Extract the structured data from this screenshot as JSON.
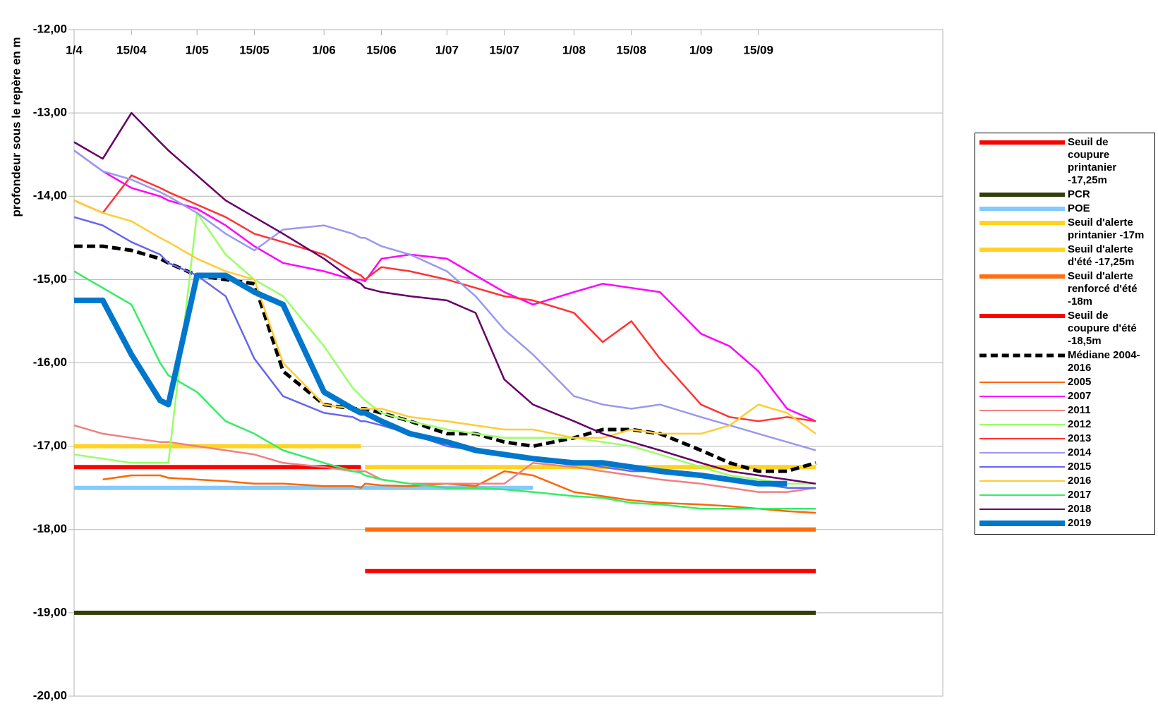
{
  "chart_data": {
    "type": "line",
    "y_label": "profondeur sous le repère en m",
    "x": [
      0,
      7,
      14,
      21,
      23,
      30,
      37,
      44,
      51,
      61,
      68,
      70,
      71,
      75,
      82,
      91,
      98,
      105,
      112,
      122,
      129,
      136,
      143,
      153,
      160,
      167,
      174,
      181
    ],
    "xlim": [
      0,
      212
    ],
    "xticks": [
      {
        "value": 0,
        "label": "1/4"
      },
      {
        "value": 14,
        "label": "15/04"
      },
      {
        "value": 30,
        "label": "1/05"
      },
      {
        "value": 44,
        "label": "15/05"
      },
      {
        "value": 61,
        "label": "1/06"
      },
      {
        "value": 75,
        "label": "15/06"
      },
      {
        "value": 91,
        "label": "1/07"
      },
      {
        "value": 105,
        "label": "15/07"
      },
      {
        "value": 122,
        "label": "1/08"
      },
      {
        "value": 136,
        "label": "15/08"
      },
      {
        "value": 153,
        "label": "1/09"
      },
      {
        "value": 167,
        "label": "15/09"
      }
    ],
    "ylim": [
      -20,
      -12
    ],
    "yticks": [
      {
        "value": -12,
        "label": "-12,00"
      },
      {
        "value": -13,
        "label": "-13,00"
      },
      {
        "value": -14,
        "label": "-14,00"
      },
      {
        "value": -15,
        "label": "-15,00"
      },
      {
        "value": -16,
        "label": "-16,00"
      },
      {
        "value": -17,
        "label": "-17,00"
      },
      {
        "value": -18,
        "label": "-18,00"
      },
      {
        "value": -19,
        "label": "-19,00"
      },
      {
        "value": -20,
        "label": "-20,00"
      }
    ],
    "grid": true,
    "legend": "right",
    "series": [
      {
        "name": "Seuil de coupure printanier -17,25m",
        "color": "#ff0000",
        "width": 6,
        "values": [
          -17.25,
          -17.25,
          -17.25,
          -17.25,
          -17.25,
          -17.25,
          -17.25,
          -17.25,
          -17.25,
          -17.25,
          -17.25,
          -17.25,
          null,
          null,
          null,
          null,
          null,
          null,
          null,
          null,
          null,
          null,
          null,
          null,
          null,
          null,
          null,
          null
        ]
      },
      {
        "name": "PCR",
        "color": "#333d0a",
        "width": 6,
        "values": [
          -19,
          -19,
          -19,
          -19,
          -19,
          -19,
          -19,
          -19,
          -19,
          -19,
          -19,
          -19,
          -19,
          -19,
          -19,
          -19,
          -19,
          -19,
          -19,
          -19,
          -19,
          -19,
          -19,
          -19,
          -19,
          -19,
          -19,
          -19
        ]
      },
      {
        "name": "POE",
        "color": "#83caff",
        "width": 6,
        "values": [
          -17.5,
          -17.5,
          -17.5,
          -17.5,
          -17.5,
          -17.5,
          -17.5,
          -17.5,
          -17.5,
          -17.5,
          -17.5,
          -17.5,
          -17.5,
          -17.5,
          -17.5,
          -17.5,
          -17.5,
          -17.5,
          -17.5,
          null,
          null,
          null,
          null,
          null,
          null,
          null,
          null,
          null
        ]
      },
      {
        "name": "Seuil d'alerte printanier -17m",
        "color": "#ffd320",
        "width": 6,
        "values": [
          -17,
          -17,
          -17,
          -17,
          -17,
          -17,
          -17,
          -17,
          -17,
          -17,
          -17,
          -17,
          null,
          null,
          null,
          null,
          null,
          null,
          null,
          null,
          null,
          null,
          null,
          null,
          null,
          null,
          null,
          null
        ]
      },
      {
        "name": "Seuil d'alerte d'été -17,25m",
        "color": "#ffd320",
        "width": 6,
        "values": [
          null,
          null,
          null,
          null,
          null,
          null,
          null,
          null,
          null,
          null,
          null,
          null,
          -17.25,
          -17.25,
          -17.25,
          -17.25,
          -17.25,
          -17.25,
          -17.25,
          -17.25,
          -17.25,
          -17.25,
          -17.25,
          -17.25,
          -17.25,
          -17.25,
          -17.25,
          -17.25
        ]
      },
      {
        "name": "Seuil d'alerte renforcé d'été -18m",
        "color": "#ff6d10",
        "width": 6,
        "values": [
          null,
          null,
          null,
          null,
          null,
          null,
          null,
          null,
          null,
          null,
          null,
          null,
          -18,
          -18,
          -18,
          -18,
          -18,
          -18,
          -18,
          -18,
          -18,
          -18,
          -18,
          -18,
          -18,
          -18,
          -18,
          -18
        ]
      },
      {
        "name": "Seuil de coupure d'été -18,5m",
        "color": "#ff0000",
        "width": 6,
        "values": [
          null,
          null,
          null,
          null,
          null,
          null,
          null,
          null,
          null,
          null,
          null,
          null,
          -18.5,
          -18.5,
          -18.5,
          -18.5,
          -18.5,
          -18.5,
          -18.5,
          -18.5,
          -18.5,
          -18.5,
          -18.5,
          -18.5,
          -18.5,
          -18.5,
          -18.5,
          -18.5
        ]
      },
      {
        "name": "Médiane 2004-2016",
        "color": "#000000",
        "width": 5,
        "dashed": true,
        "values": [
          -14.6,
          -14.6,
          -14.65,
          -14.75,
          -14.8,
          -14.95,
          -15.0,
          -15.05,
          -16.1,
          -16.5,
          -16.55,
          -16.55,
          -16.55,
          -16.6,
          -16.7,
          -16.85,
          -16.85,
          -16.95,
          -17.0,
          -16.9,
          -16.8,
          -16.8,
          -16.85,
          -17.05,
          -17.2,
          -17.3,
          -17.3,
          -17.2
        ]
      },
      {
        "name": "2005",
        "color": "#ff6600",
        "width": 2.5,
        "values": [
          null,
          -17.4,
          -17.35,
          -17.35,
          -17.38,
          -17.4,
          -17.42,
          -17.45,
          -17.45,
          -17.48,
          -17.48,
          -17.5,
          -17.45,
          -17.47,
          -17.48,
          -17.45,
          -17.48,
          -17.3,
          -17.35,
          -17.55,
          -17.6,
          -17.65,
          -17.68,
          -17.7,
          -17.72,
          -17.75,
          -17.78,
          -17.8
        ]
      },
      {
        "name": "2007",
        "color": "#ff00ff",
        "width": 2.5,
        "values": [
          -13.45,
          -13.7,
          -13.9,
          -14.0,
          -14.05,
          -14.15,
          -14.35,
          -14.6,
          -14.8,
          -14.9,
          -15.0,
          -15.0,
          -15.02,
          -14.75,
          -14.7,
          -14.75,
          -14.95,
          -15.15,
          -15.3,
          -15.15,
          -15.05,
          -15.1,
          -15.15,
          -15.65,
          -15.8,
          -16.1,
          -16.55,
          -16.7
        ]
      },
      {
        "name": "2011",
        "color": "#f08080",
        "width": 2.5,
        "values": [
          -16.75,
          -16.85,
          -16.9,
          -16.95,
          -16.95,
          -17.0,
          -17.05,
          -17.1,
          -17.2,
          -17.25,
          -17.3,
          -17.3,
          -17.3,
          -17.4,
          -17.45,
          -17.45,
          -17.45,
          -17.45,
          -17.2,
          -17.25,
          -17.3,
          -17.35,
          -17.4,
          -17.45,
          -17.5,
          -17.55,
          -17.55,
          -17.5
        ]
      },
      {
        "name": "2012",
        "color": "#99ff66",
        "width": 2.5,
        "values": [
          -17.1,
          -17.15,
          -17.2,
          -17.2,
          -17.2,
          -14.2,
          -14.7,
          -15.0,
          -15.2,
          -15.8,
          -16.3,
          -16.4,
          -16.45,
          -16.6,
          -16.7,
          -16.8,
          -16.85,
          -16.9,
          -16.9,
          -16.9,
          -16.95,
          -17.0,
          -17.1,
          -17.25,
          -17.35,
          -17.4,
          -17.45,
          -17.45
        ]
      },
      {
        "name": "2013",
        "color": "#ff3333",
        "width": 2.5,
        "values": [
          -14.05,
          -14.2,
          -13.75,
          -13.9,
          -13.95,
          -14.1,
          -14.25,
          -14.45,
          -14.55,
          -14.7,
          -14.9,
          -14.95,
          -15.0,
          -14.85,
          -14.9,
          -15.0,
          -15.1,
          -15.2,
          -15.25,
          -15.4,
          -15.75,
          -15.5,
          -15.95,
          -16.5,
          -16.65,
          -16.7,
          -16.65,
          -16.7
        ]
      },
      {
        "name": "2014",
        "color": "#9999ee",
        "width": 2.5,
        "values": [
          -13.45,
          -13.7,
          -13.8,
          -13.95,
          -14.0,
          -14.2,
          -14.45,
          -14.65,
          -14.4,
          -14.35,
          -14.45,
          -14.5,
          -14.5,
          -14.6,
          -14.7,
          -14.9,
          -15.2,
          -15.6,
          -15.9,
          -16.4,
          -16.5,
          -16.55,
          -16.5,
          -16.65,
          -16.75,
          -16.85,
          -16.95,
          -17.05
        ]
      },
      {
        "name": "2015",
        "color": "#6666ee",
        "width": 2.5,
        "values": [
          -14.25,
          -14.35,
          -14.55,
          -14.7,
          -14.8,
          -14.95,
          -15.2,
          -15.95,
          -16.4,
          -16.6,
          -16.65,
          -16.7,
          -16.7,
          -16.75,
          -16.85,
          -17.0,
          -17.05,
          -17.1,
          -17.15,
          -17.2,
          -17.25,
          -17.3,
          -17.3,
          -17.35,
          -17.4,
          -17.45,
          -17.5,
          -17.5
        ]
      },
      {
        "name": "2016",
        "color": "#ffcc33",
        "width": 2.5,
        "values": [
          -14.05,
          -14.2,
          -14.3,
          -14.5,
          -14.55,
          -14.75,
          -14.9,
          -15.0,
          -16.0,
          -16.5,
          -16.55,
          -16.55,
          -16.55,
          -16.55,
          -16.65,
          -16.7,
          -16.75,
          -16.8,
          -16.8,
          -16.9,
          -16.9,
          -16.8,
          -16.85,
          -16.85,
          -16.75,
          -16.5,
          -16.6,
          -16.85
        ]
      },
      {
        "name": "2017",
        "color": "#33ee66",
        "width": 2.5,
        "values": [
          -14.9,
          -15.1,
          -15.3,
          -16.0,
          -16.15,
          -16.35,
          -16.7,
          -16.85,
          -17.05,
          -17.2,
          -17.3,
          -17.32,
          -17.35,
          -17.4,
          -17.45,
          -17.5,
          -17.5,
          -17.52,
          -17.55,
          -17.6,
          -17.62,
          -17.68,
          -17.7,
          -17.75,
          -17.75,
          -17.75,
          -17.75,
          -17.75
        ]
      },
      {
        "name": "2018",
        "color": "#660066",
        "width": 2.5,
        "values": [
          -13.35,
          -13.55,
          -13.0,
          -13.35,
          -13.45,
          -13.75,
          -14.05,
          -14.25,
          -14.45,
          -14.75,
          -15.0,
          -15.05,
          -15.1,
          -15.15,
          -15.2,
          -15.25,
          -15.4,
          -16.2,
          -16.5,
          -16.7,
          -16.85,
          -16.95,
          -17.05,
          -17.2,
          -17.3,
          -17.35,
          -17.4,
          -17.45
        ]
      },
      {
        "name": "2019",
        "color": "#0077cc",
        "width": 8,
        "values": [
          -15.25,
          -15.25,
          -15.9,
          -16.45,
          -16.5,
          -14.95,
          -14.95,
          -15.15,
          -15.3,
          -16.35,
          -16.55,
          -16.6,
          -16.6,
          -16.7,
          -16.85,
          -16.95,
          -17.05,
          -17.1,
          -17.15,
          -17.2,
          -17.2,
          -17.25,
          -17.3,
          -17.35,
          -17.4,
          -17.45,
          -17.45,
          null
        ]
      }
    ]
  }
}
